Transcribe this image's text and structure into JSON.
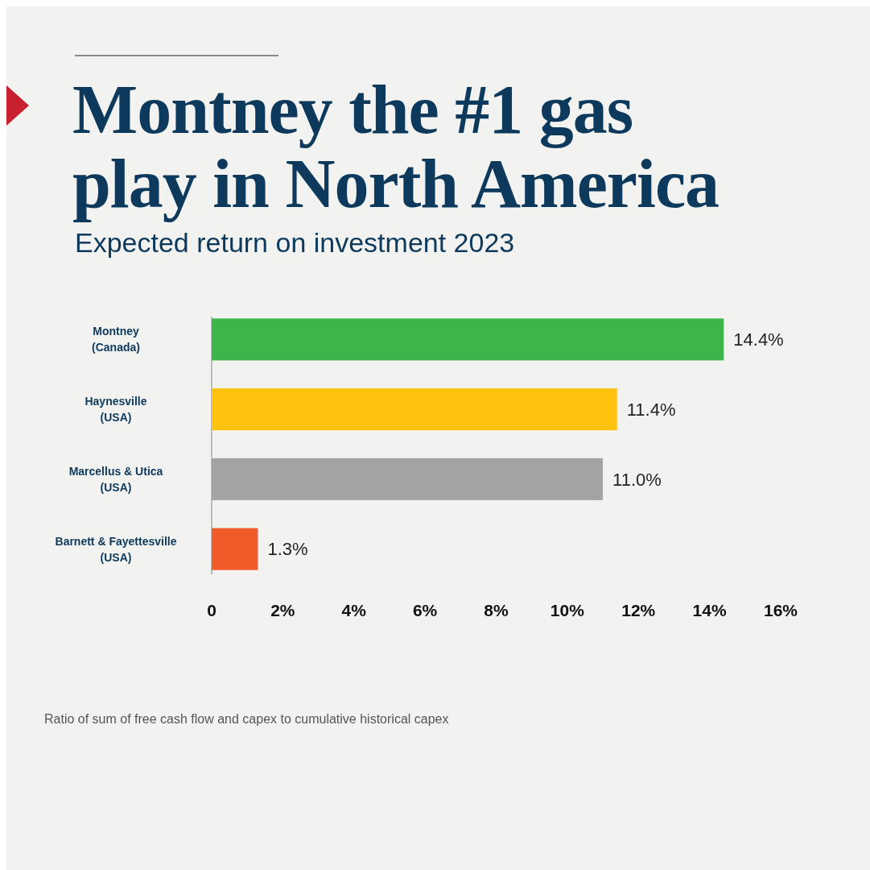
{
  "chart_data": {
    "type": "bar",
    "orientation": "horizontal",
    "title": "Montney the #1 gas play in North America",
    "subtitle": "Expected return on investment 2023",
    "categories": [
      "Montney (Canada)",
      "Haynesville (USA)",
      "Marcellus & Utica (USA)",
      "Barnett & Fayettesville (USA)"
    ],
    "values": [
      14.4,
      11.4,
      11.0,
      1.3
    ],
    "colors": [
      "#3db54a",
      "#ffc20e",
      "#a3a3a3",
      "#f15a29"
    ],
    "value_labels": [
      "14.4%",
      "11.4%",
      "11.0%",
      "1.3%"
    ],
    "xlim": [
      0,
      16
    ],
    "xticks": [
      0,
      {
        "value": 2,
        "label": "2%"
      },
      {
        "value": 4,
        "label": "4%"
      },
      {
        "value": 6,
        "label": "6%"
      },
      {
        "value": 8,
        "label": "8%"
      },
      {
        "value": 10,
        "label": "10%"
      },
      {
        "value": 12,
        "label": "12%"
      },
      {
        "value": 14,
        "label": "14%"
      },
      {
        "value": 16,
        "label": "16%"
      }
    ],
    "grid": false,
    "annotations": [
      "Ratio of sum of free cash flow and capex to cumulative historical capex"
    ]
  }
}
